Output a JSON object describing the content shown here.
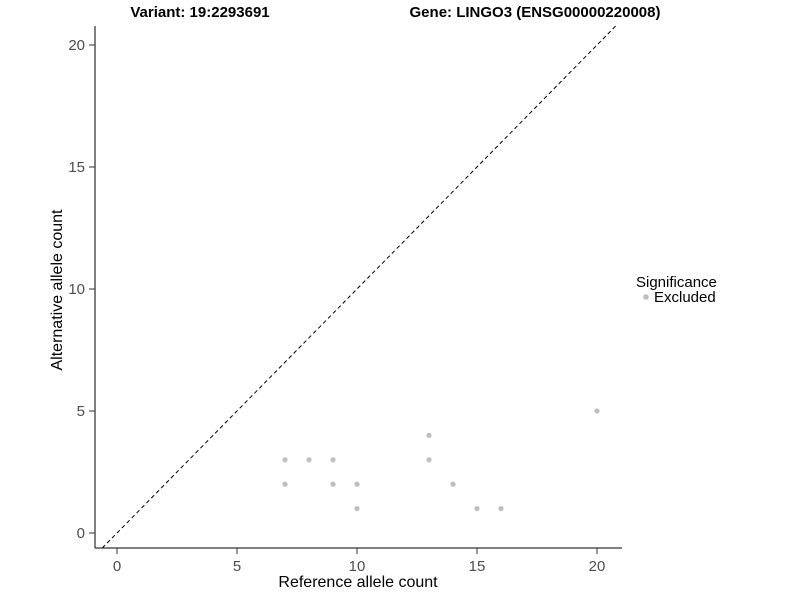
{
  "chart_data": {
    "type": "scatter",
    "title_left": "Variant: 19:2293691",
    "title_right": "Gene: LINGO3 (ENSG00000220008)",
    "xlabel": "Reference allele count",
    "ylabel": "Alternative allele count",
    "xticks": [
      0,
      5,
      10,
      15,
      20
    ],
    "yticks": [
      0,
      5,
      10,
      15,
      20
    ],
    "xlim": [
      -1,
      21
    ],
    "ylim": [
      -0.6,
      20.8
    ],
    "grid": false,
    "identity_line": {
      "equation": "y = x",
      "style": "dashed",
      "color": "#000000"
    },
    "series": [
      {
        "name": "Excluded",
        "color": "#bebebe",
        "points": [
          [
            7,
            2
          ],
          [
            7,
            3
          ],
          [
            8,
            3
          ],
          [
            9,
            2
          ],
          [
            9,
            3
          ],
          [
            10,
            1
          ],
          [
            10,
            2
          ],
          [
            13,
            3
          ],
          [
            13,
            4
          ],
          [
            14,
            2
          ],
          [
            15,
            1
          ],
          [
            16,
            1
          ],
          [
            20,
            5
          ]
        ]
      }
    ],
    "legend": {
      "title": "Significance",
      "position": "right",
      "items": [
        {
          "label": "Excluded",
          "color": "#bebebe"
        }
      ]
    }
  }
}
